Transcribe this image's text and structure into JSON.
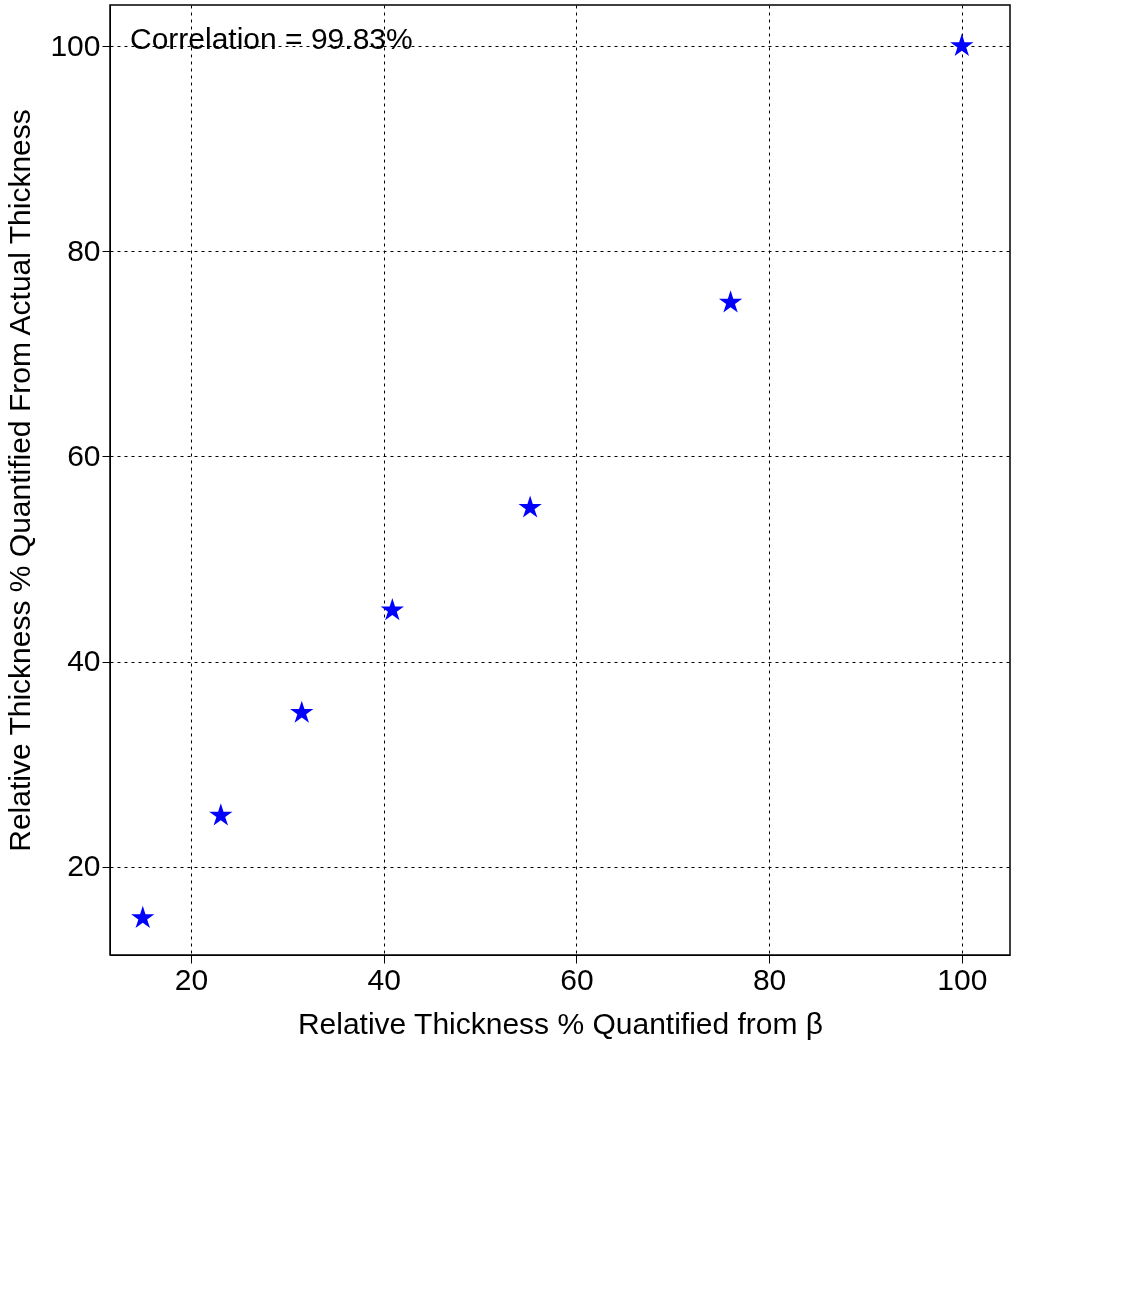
{
  "chart_data": {
    "type": "scatter",
    "xlabel": "Relative Thickness % Quantified from β",
    "ylabel": "Relative Thickness % Quantified From Actual Thickness",
    "annotations": [
      "Correlation = 99.83%"
    ],
    "x": [
      100,
      76,
      55.2,
      40.9,
      31.5,
      23.1,
      15
    ],
    "series": [
      {
        "color": "#0000ff",
        "values": [
          100,
          75,
          55,
          45,
          35,
          25,
          15
        ]
      }
    ],
    "xlim": [
      11.6,
      105
    ],
    "ylim": [
      11.4,
      104
    ],
    "xticks": [
      20,
      40,
      60,
      80,
      100
    ],
    "yticks": [
      20,
      40,
      60,
      80,
      100
    ],
    "grid": true,
    "marker": "star"
  }
}
